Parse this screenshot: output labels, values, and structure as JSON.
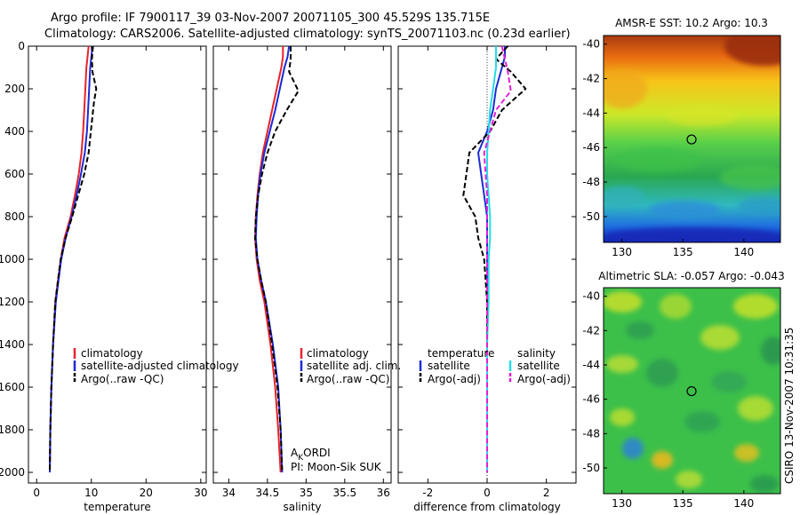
{
  "titles": {
    "line1": "Argo profile: IF 7900117_39 03-Nov-2007 20071105_300 45.529S 135.715E",
    "line2": "Climatology: CARS2006. Satellite-adjusted climatology: synTS_20071103.nc (0.23d earlier)"
  },
  "side_label": "CSIRO 13-Nov-2007 10:31:35",
  "colors": {
    "climatology": "#e8232a",
    "satellite": "#1c2bd6",
    "argo": "#000000",
    "sat_salinity": "#22dde8",
    "argo_sal_adj": "#e020d8",
    "map_marker": "#000000"
  },
  "chart_data": [
    {
      "id": "temperature",
      "type": "line",
      "xlabel": "temperature",
      "xlim": [
        -1.5,
        31
      ],
      "xticks": [
        0,
        10,
        20,
        30
      ],
      "ylim": [
        2050,
        0
      ],
      "yticks": [
        0,
        200,
        400,
        600,
        800,
        1000,
        1200,
        1400,
        1600,
        1800,
        2000
      ],
      "legend": [
        "climatology",
        "satellite-adjusted climatology",
        "Argo(..raw -QC)"
      ],
      "series": [
        {
          "name": "climatology",
          "style": "solid",
          "color": "#e8232a",
          "x": [
            9.5,
            9.3,
            9.1,
            8.9,
            8.7,
            8.5,
            8.2,
            7.7,
            7.0,
            6.2,
            5.1,
            4.4,
            3.9,
            3.4,
            3.0,
            2.7,
            2.5,
            2.4
          ],
          "y": [
            0,
            50,
            100,
            200,
            300,
            400,
            500,
            600,
            700,
            800,
            900,
            1000,
            1100,
            1200,
            1400,
            1600,
            1800,
            2000
          ]
        },
        {
          "name": "satellite-adjusted climatology",
          "style": "solid",
          "color": "#1c2bd6",
          "x": [
            10.2,
            10.0,
            9.8,
            9.6,
            9.4,
            9.2,
            8.8,
            8.1,
            7.3,
            6.4,
            5.3,
            4.5,
            4.0,
            3.5,
            3.0,
            2.7,
            2.5,
            2.4
          ],
          "y": [
            0,
            50,
            100,
            200,
            300,
            400,
            500,
            600,
            700,
            800,
            900,
            1000,
            1100,
            1200,
            1400,
            1600,
            1800,
            2000
          ]
        },
        {
          "name": "Argo(..raw -QC)",
          "style": "dashed",
          "color": "#000000",
          "x": [
            10.3,
            10.1,
            10.2,
            10.9,
            10.5,
            9.9,
            9.5,
            8.7,
            7.6,
            6.5,
            5.3,
            4.4,
            3.9,
            3.4,
            3.0,
            2.7,
            2.5,
            2.4
          ],
          "y": [
            0,
            60,
            120,
            200,
            260,
            400,
            500,
            600,
            700,
            800,
            900,
            1000,
            1100,
            1200,
            1400,
            1600,
            1800,
            1990
          ]
        }
      ]
    },
    {
      "id": "salinity",
      "type": "line",
      "xlabel": "salinity",
      "xlim": [
        33.8,
        36.1
      ],
      "xticks": [
        34,
        34.5,
        35,
        35.5,
        36
      ],
      "ylim": [
        2050,
        0
      ],
      "legend": [
        "climatology",
        "satellite adj. clim.",
        "Argo(..raw -QC)"
      ],
      "annotation_lines": [
        "AKORDI",
        "PI: Moon-Sik SUK"
      ],
      "series": [
        {
          "name": "climatology",
          "style": "solid",
          "color": "#e8232a",
          "x": [
            34.7,
            34.7,
            34.68,
            34.62,
            34.56,
            34.5,
            34.44,
            34.4,
            34.37,
            34.35,
            34.34,
            34.36,
            34.4,
            34.46,
            34.54,
            34.6,
            34.64,
            34.67
          ],
          "y": [
            0,
            50,
            100,
            200,
            300,
            400,
            500,
            600,
            700,
            800,
            900,
            1000,
            1100,
            1200,
            1400,
            1600,
            1800,
            2000
          ]
        },
        {
          "name": "satellite adj. clim.",
          "style": "solid",
          "color": "#1c2bd6",
          "x": [
            34.78,
            34.76,
            34.72,
            34.66,
            34.6,
            34.53,
            34.46,
            34.41,
            34.38,
            34.36,
            34.35,
            34.37,
            34.42,
            34.48,
            34.57,
            34.64,
            34.67,
            34.69
          ],
          "y": [
            0,
            50,
            100,
            200,
            300,
            400,
            500,
            600,
            700,
            800,
            900,
            1000,
            1100,
            1200,
            1400,
            1600,
            1800,
            2000
          ]
        },
        {
          "name": "Argo(..raw -QC)",
          "style": "dashed",
          "color": "#000000",
          "x": [
            34.8,
            34.8,
            34.78,
            34.9,
            34.75,
            34.6,
            34.5,
            34.43,
            34.38,
            34.35,
            34.34,
            34.37,
            34.42,
            34.48,
            34.56,
            34.63,
            34.67,
            34.69
          ],
          "y": [
            0,
            60,
            120,
            210,
            300,
            400,
            500,
            600,
            700,
            800,
            900,
            1000,
            1100,
            1200,
            1400,
            1600,
            1800,
            1990
          ]
        }
      ]
    },
    {
      "id": "difference",
      "type": "line",
      "xlabel": "difference from climatology",
      "xlim": [
        -3,
        3
      ],
      "xticks": [
        -2,
        0,
        2
      ],
      "ylim": [
        2050,
        0
      ],
      "legend_temperature": {
        "title": "temperature",
        "items": [
          "satellite",
          "Argo(-adj)"
        ]
      },
      "legend_salinity": {
        "title": "salinity",
        "items": [
          "satellite",
          "Argo(-adj)"
        ]
      },
      "series": [
        {
          "name": "temperature satellite",
          "style": "solid",
          "color": "#1c2bd6",
          "x": [
            0.6,
            0.6,
            0.5,
            0.3,
            0.2,
            0.0,
            -0.3,
            -0.2,
            -0.1,
            0.0,
            0.0,
            0.0,
            0.0,
            0.0,
            0.0,
            0.0,
            0.0
          ],
          "y": [
            0,
            50,
            100,
            200,
            300,
            400,
            500,
            600,
            700,
            800,
            900,
            1000,
            1200,
            1400,
            1600,
            1800,
            2000
          ]
        },
        {
          "name": "temperature Argo(-adj)",
          "style": "dashed",
          "color": "#000000",
          "x": [
            0.7,
            0.3,
            0.8,
            1.3,
            0.5,
            0.1,
            -0.6,
            -0.7,
            -0.8,
            -0.4,
            -0.3,
            -0.1,
            0.0,
            0.0,
            0.0,
            0.0,
            0.0
          ],
          "y": [
            0,
            60,
            120,
            200,
            300,
            400,
            500,
            600,
            700,
            800,
            900,
            1000,
            1200,
            1400,
            1600,
            1800,
            2000
          ]
        },
        {
          "name": "salinity satellite",
          "style": "solid",
          "color": "#22dde8",
          "x": [
            0.3,
            0.3,
            0.3,
            0.2,
            0.1,
            0.05,
            0.0,
            0.0,
            0.05,
            0.1,
            0.1,
            0.05,
            0.05,
            0.0,
            0.0,
            0.0,
            0.0
          ],
          "y": [
            0,
            50,
            100,
            200,
            300,
            400,
            500,
            600,
            700,
            800,
            900,
            1000,
            1200,
            1400,
            1600,
            1800,
            2000
          ]
        },
        {
          "name": "salinity Argo(-adj)",
          "style": "dashed",
          "color": "#e020d8",
          "x": [
            0.5,
            0.6,
            0.7,
            0.8,
            0.3,
            0.1,
            -0.1,
            -0.05,
            0.0,
            0.0,
            0.0,
            0.0,
            0.0,
            0.0,
            0.0,
            0.0,
            0.0
          ],
          "y": [
            0,
            60,
            120,
            210,
            300,
            400,
            500,
            600,
            700,
            800,
            900,
            1000,
            1200,
            1400,
            1600,
            1800,
            2000
          ]
        }
      ]
    },
    {
      "id": "sst_map",
      "type": "heatmap",
      "title": "AMSR-E SST: 10.2 Argo: 10.3",
      "xlim": [
        128.5,
        143
      ],
      "ylim": [
        -51.5,
        -39.5
      ],
      "xticks": [
        130,
        135,
        140
      ],
      "yticks": [
        -40,
        -42,
        -44,
        -46,
        -48,
        -50
      ],
      "marker": {
        "lon": 135.715,
        "lat": -45.529
      }
    },
    {
      "id": "sla_map",
      "type": "heatmap",
      "title": "Altimetric SLA: -0.057 Argo: -0.043",
      "xlim": [
        128.5,
        143
      ],
      "ylim": [
        -51.5,
        -39.5
      ],
      "xticks": [
        130,
        135,
        140
      ],
      "yticks": [
        -40,
        -42,
        -44,
        -46,
        -48,
        -50
      ],
      "marker": {
        "lon": 135.715,
        "lat": -45.529
      }
    }
  ]
}
